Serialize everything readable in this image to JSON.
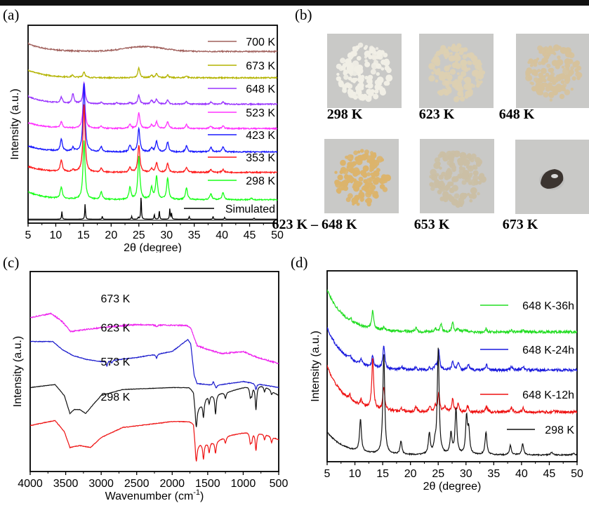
{
  "panels": {
    "a": "(a)",
    "b": "(b)",
    "c": "(c)",
    "d": "(d)"
  },
  "photos": [
    {
      "caption": "298 K",
      "color": "#f1efe6",
      "shape": "powder"
    },
    {
      "caption": "623 K",
      "color": "#ddd0b2",
      "shape": "powder"
    },
    {
      "caption": "648 K",
      "color": "#d6c29c",
      "shape": "powder"
    },
    {
      "caption": "623 K – 648 K",
      "color": "#dcb46c",
      "shape": "powder"
    },
    {
      "caption": "653 K",
      "color": "#cbbfa5",
      "shape": "powder"
    },
    {
      "caption": "673 K",
      "color": "#3b3430",
      "shape": "lump"
    }
  ],
  "chart_data": [
    {
      "id": "a",
      "type": "line",
      "title": "",
      "xlabel": "2θ (degree)",
      "ylabel": "Intensity (a.u.)",
      "xlim": [
        5,
        50
      ],
      "xticks": [
        5,
        10,
        15,
        20,
        25,
        30,
        35,
        40,
        45,
        50
      ],
      "legend": "right",
      "series": [
        {
          "name": "700 K",
          "color": "#a0605c",
          "offset": 0.88,
          "baseline_decay": 0.04,
          "hump": {
            "center": 26,
            "width": 5,
            "height": 0.025
          },
          "peaks": []
        },
        {
          "name": "673 K",
          "color": "#b3b300",
          "offset": 0.745,
          "baseline_decay": 0.04,
          "peaks": [
            [
              13,
              0.01
            ],
            [
              15.1,
              0.03
            ],
            [
              25,
              0.05
            ],
            [
              27.3,
              0.012
            ],
            [
              28.2,
              0.02
            ],
            [
              30.2,
              0.015
            ],
            [
              33.6,
              0.01
            ]
          ]
        },
        {
          "name": "648 K",
          "color": "#9933ff",
          "offset": 0.61,
          "baseline_decay": 0.04,
          "peaks": [
            [
              11,
              0.03
            ],
            [
              13.1,
              0.05
            ],
            [
              15.1,
              0.11
            ],
            [
              18.2,
              0.008
            ],
            [
              21,
              0.006
            ],
            [
              23.4,
              0.008
            ],
            [
              25,
              0.045
            ],
            [
              27.3,
              0.02
            ],
            [
              28.2,
              0.025
            ],
            [
              30.2,
              0.02
            ],
            [
              33.6,
              0.012
            ],
            [
              38,
              0.01
            ],
            [
              40.2,
              0.01
            ]
          ]
        },
        {
          "name": "523 K",
          "color": "#ff33ff",
          "offset": 0.485,
          "baseline_decay": 0.03,
          "peaks": [
            [
              11,
              0.03
            ],
            [
              15.1,
              0.2
            ],
            [
              18.2,
              0.01
            ],
            [
              23.4,
              0.02
            ],
            [
              25,
              0.08
            ],
            [
              27.3,
              0.02
            ],
            [
              28.2,
              0.035
            ],
            [
              30.2,
              0.035
            ],
            [
              33.6,
              0.02
            ],
            [
              38,
              0.012
            ],
            [
              40.2,
              0.012
            ]
          ]
        },
        {
          "name": "423 K",
          "color": "#1a1aff",
          "offset": 0.365,
          "baseline_decay": 0.03,
          "peaks": [
            [
              11,
              0.06
            ],
            [
              13.1,
              0.02
            ],
            [
              15.1,
              0.35
            ],
            [
              18.2,
              0.025
            ],
            [
              23.4,
              0.035
            ],
            [
              25,
              0.12
            ],
            [
              27.3,
              0.02
            ],
            [
              28.2,
              0.055
            ],
            [
              30.2,
              0.05
            ],
            [
              33.6,
              0.03
            ],
            [
              38,
              0.025
            ],
            [
              40.2,
              0.025
            ]
          ]
        },
        {
          "name": "353 K",
          "color": "#ff1a1a",
          "offset": 0.26,
          "baseline_decay": 0.03,
          "peaks": [
            [
              11,
              0.06
            ],
            [
              13.1,
              0.01
            ],
            [
              15.1,
              0.35
            ],
            [
              18.2,
              0.02
            ],
            [
              23.4,
              0.025
            ],
            [
              25,
              0.14
            ],
            [
              27.3,
              0.02
            ],
            [
              28.2,
              0.05
            ],
            [
              30.2,
              0.045
            ],
            [
              33.6,
              0.025
            ],
            [
              38,
              0.015
            ],
            [
              40.2,
              0.015
            ]
          ]
        },
        {
          "name": "298 K",
          "color": "#1aff1a",
          "offset": 0.12,
          "baseline_decay": 0.04,
          "peaks": [
            [
              11,
              0.06
            ],
            [
              15.1,
              0.3
            ],
            [
              18.2,
              0.04
            ],
            [
              23.4,
              0.06
            ],
            [
              25,
              0.22
            ],
            [
              27.3,
              0.06
            ],
            [
              28.2,
              0.12
            ],
            [
              30.2,
              0.11
            ],
            [
              33.6,
              0.06
            ],
            [
              38,
              0.03
            ],
            [
              40.2,
              0.035
            ],
            [
              45.3,
              0.006
            ]
          ]
        },
        {
          "name": "Simulated",
          "color": "#000000",
          "offset": 0.02,
          "baseline_decay": 0,
          "sharp": true,
          "peaks": [
            [
              11.1,
              0.04
            ],
            [
              15.3,
              0.08
            ],
            [
              18.4,
              0.015
            ],
            [
              23.7,
              0.015
            ],
            [
              24.9,
              0.01
            ],
            [
              25.4,
              0.12
            ],
            [
              27.8,
              0.025
            ],
            [
              28.7,
              0.045
            ],
            [
              30.6,
              0.055
            ],
            [
              30.9,
              0.03
            ],
            [
              34.1,
              0.015
            ],
            [
              38.4,
              0.015
            ],
            [
              40.5,
              0.01
            ],
            [
              45.8,
              0.006
            ]
          ]
        }
      ]
    },
    {
      "id": "c",
      "type": "line",
      "title": "",
      "xlabel": "Wavenumber (cm⁻¹)",
      "xlabel_main": "Wavenumber (cm",
      "xlabel_sup": "-1",
      "xlabel_end": ")",
      "ylabel": "Intensity (a.u.)",
      "xlim": [
        4000,
        500
      ],
      "xticks": [
        4000,
        3500,
        3000,
        2500,
        2000,
        1500,
        1000,
        500
      ],
      "legend": "inline-labels",
      "series": [
        {
          "name": "673 K",
          "color": "#ee22ee",
          "label_at": [
            2800,
            0.845
          ]
        },
        {
          "name": "623 K",
          "color": "#1a1acc",
          "label_at": [
            2800,
            0.7
          ]
        },
        {
          "name": "573 K",
          "color": "#111111",
          "label_at": [
            2800,
            0.53
          ]
        },
        {
          "name": "298 K",
          "color": "#ee1111",
          "label_at": [
            2800,
            0.355
          ]
        }
      ]
    },
    {
      "id": "d",
      "type": "line",
      "title": "",
      "xlabel": "2θ (degree)",
      "ylabel": "Intensity (a.u.)",
      "xlim": [
        5,
        50
      ],
      "xticks": [
        5,
        10,
        15,
        20,
        25,
        30,
        35,
        40,
        45,
        50
      ],
      "legend": "right",
      "series": [
        {
          "name": "648 K-36h",
          "color": "#22dd22",
          "offset": 0.68,
          "baseline_decay": 0.22,
          "peaks": [
            [
              9.2,
              0.015
            ],
            [
              13.2,
              0.1
            ],
            [
              15.2,
              0.015
            ],
            [
              21,
              0.02
            ],
            [
              24.5,
              0.02
            ],
            [
              25.5,
              0.04
            ],
            [
              27.6,
              0.05
            ],
            [
              28.6,
              0.02
            ],
            [
              29.8,
              0.01
            ],
            [
              33.6,
              0.015
            ],
            [
              38.2,
              0.008
            ],
            [
              40.3,
              0.008
            ]
          ]
        },
        {
          "name": "648 K-24h",
          "color": "#1a1add",
          "offset": 0.48,
          "baseline_decay": 0.22,
          "peaks": [
            [
              9.2,
              0.015
            ],
            [
              11.1,
              0.03
            ],
            [
              13.2,
              0.06
            ],
            [
              15.2,
              0.12
            ],
            [
              18.4,
              0.015
            ],
            [
              21,
              0.012
            ],
            [
              23.5,
              0.012
            ],
            [
              24.5,
              0.02
            ],
            [
              25.1,
              0.1
            ],
            [
              27.6,
              0.04
            ],
            [
              28.6,
              0.04
            ],
            [
              30.4,
              0.03
            ],
            [
              33.7,
              0.03
            ],
            [
              38.2,
              0.02
            ],
            [
              40.3,
              0.02
            ]
          ]
        },
        {
          "name": "648 K-12h",
          "color": "#ee1111",
          "offset": 0.26,
          "baseline_decay": 0.24,
          "peaks": [
            [
              9.1,
              0.025
            ],
            [
              11.1,
              0.03
            ],
            [
              13.2,
              0.26
            ],
            [
              15.2,
              0.12
            ],
            [
              18.4,
              0.015
            ],
            [
              21,
              0.03
            ],
            [
              23.5,
              0.025
            ],
            [
              24.5,
              0.03
            ],
            [
              25.1,
              0.1
            ],
            [
              26.2,
              0.03
            ],
            [
              27.6,
              0.07
            ],
            [
              28.6,
              0.04
            ],
            [
              30.3,
              0.03
            ],
            [
              33.7,
              0.03
            ],
            [
              38.2,
              0.025
            ],
            [
              40.3,
              0.02
            ],
            [
              45.8,
              0.006
            ]
          ]
        },
        {
          "name": "298 K",
          "color": "#111111",
          "offset": 0.035,
          "baseline_decay": 0.12,
          "peaks": [
            [
              11,
              0.17
            ],
            [
              15.2,
              0.53
            ],
            [
              18.3,
              0.07
            ],
            [
              23.4,
              0.11
            ],
            [
              24.4,
              0.05
            ],
            [
              25,
              0.55
            ],
            [
              27.3,
              0.11
            ],
            [
              28.2,
              0.24
            ],
            [
              30.1,
              0.19
            ],
            [
              30.5,
              0.12
            ],
            [
              33.6,
              0.12
            ],
            [
              38,
              0.05
            ],
            [
              40.2,
              0.06
            ],
            [
              45.4,
              0.015
            ],
            [
              49.4,
              0.01
            ]
          ]
        }
      ]
    }
  ]
}
